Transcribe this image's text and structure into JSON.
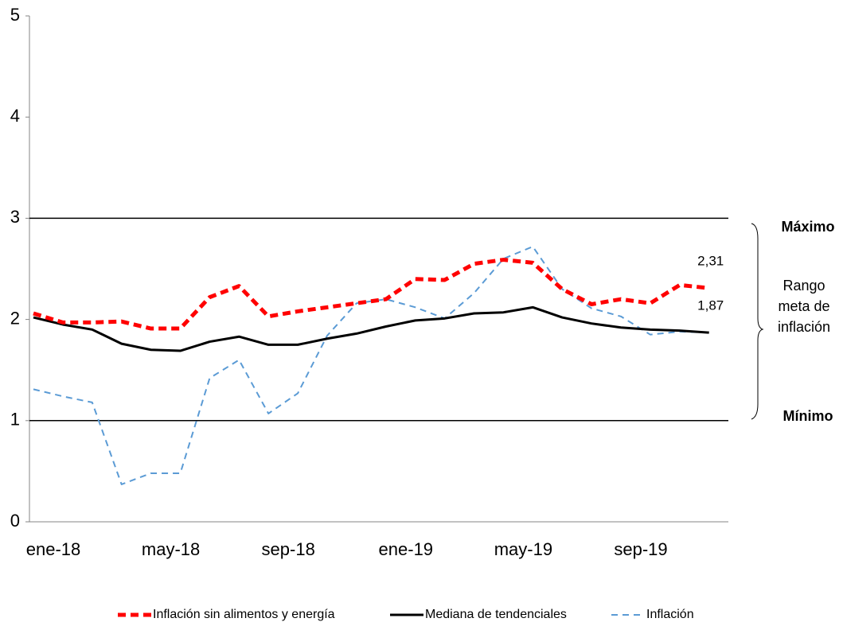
{
  "chart_data": {
    "type": "line",
    "categories": [
      "ene-18",
      null,
      null,
      null,
      "may-18",
      null,
      null,
      null,
      "sep-18",
      null,
      null,
      null,
      "ene-19",
      null,
      null,
      null,
      "may-19",
      null,
      null,
      null,
      "sep-19",
      null,
      null,
      null
    ],
    "series": [
      {
        "name": "Inflación sin alimentos y energía",
        "color": "#ff0000",
        "values": [
          2.06,
          1.97,
          1.97,
          1.98,
          1.91,
          1.91,
          2.22,
          2.33,
          2.03,
          2.08,
          2.12,
          2.16,
          2.2,
          2.4,
          2.39,
          2.55,
          2.59,
          2.56,
          2.3,
          2.15,
          2.2,
          2.16,
          2.34,
          2.31
        ],
        "value_labels": [
          null,
          null,
          null,
          null,
          null,
          null,
          null,
          null,
          null,
          null,
          null,
          null,
          null,
          null,
          null,
          null,
          null,
          null,
          null,
          null,
          null,
          null,
          null,
          "2,31"
        ]
      },
      {
        "name": "Mediana de tendenciales",
        "color": "#000000",
        "values": [
          2.02,
          1.95,
          1.9,
          1.76,
          1.7,
          1.69,
          1.78,
          1.83,
          1.75,
          1.75,
          1.81,
          1.86,
          1.93,
          1.99,
          2.01,
          2.06,
          2.07,
          2.12,
          2.02,
          1.96,
          1.92,
          1.9,
          1.89,
          1.87
        ],
        "value_labels": [
          null,
          null,
          null,
          null,
          null,
          null,
          null,
          null,
          null,
          null,
          null,
          null,
          null,
          null,
          null,
          null,
          null,
          null,
          null,
          null,
          null,
          null,
          null,
          "1,87"
        ]
      },
      {
        "name": "Inflación",
        "color": "#5b9bd5",
        "values": [
          1.31,
          1.24,
          1.18,
          0.37,
          0.48,
          0.48,
          1.42,
          1.6,
          1.07,
          1.27,
          1.84,
          2.16,
          2.2,
          2.12,
          2.01,
          2.26,
          2.6,
          2.72,
          2.3,
          2.11,
          2.03,
          1.85,
          1.88,
          1.87
        ]
      }
    ],
    "reference_lines": [
      {
        "value": 3,
        "label": "Máximo"
      },
      {
        "value": 1,
        "label": "Mínimo"
      }
    ],
    "range_label": [
      "Rango",
      "meta de",
      "inflación"
    ],
    "ylim": [
      0,
      5
    ],
    "yticks": [
      0,
      1,
      2,
      3,
      4,
      5
    ],
    "legend": "bottom"
  }
}
